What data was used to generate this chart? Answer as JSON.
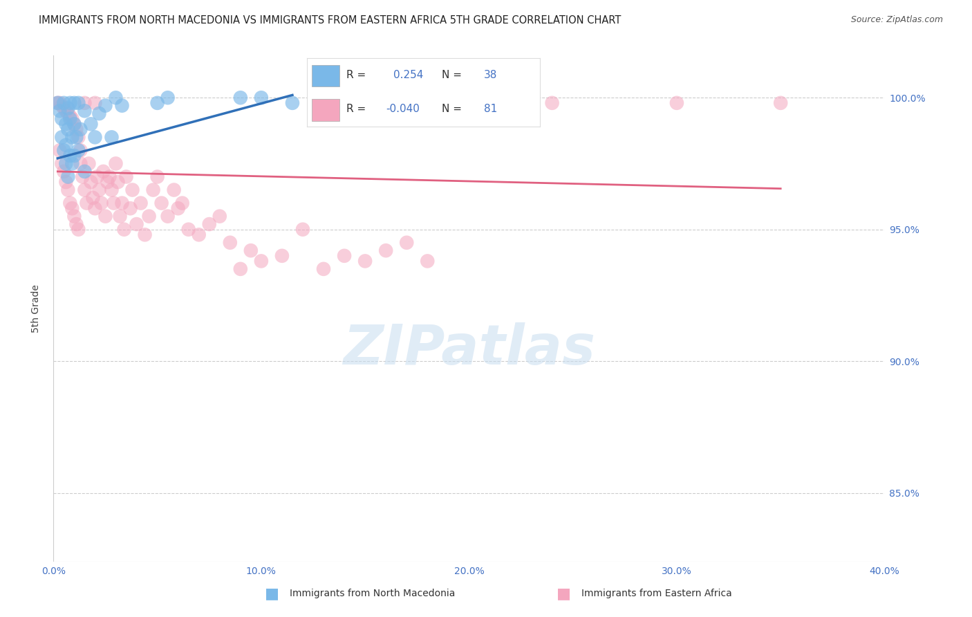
{
  "title": "IMMIGRANTS FROM NORTH MACEDONIA VS IMMIGRANTS FROM EASTERN AFRICA 5TH GRADE CORRELATION CHART",
  "source": "Source: ZipAtlas.com",
  "ylabel": "5th Grade",
  "y_ticks": [
    0.85,
    0.9,
    0.95,
    1.0
  ],
  "y_tick_labels": [
    "85.0%",
    "90.0%",
    "95.0%",
    "100.0%"
  ],
  "xlim": [
    0.0,
    0.4
  ],
  "ylim": [
    0.824,
    1.016
  ],
  "x_ticks": [
    0.0,
    0.1,
    0.2,
    0.3,
    0.4
  ],
  "x_tick_labels": [
    "0.0%",
    "10.0%",
    "20.0%",
    "30.0%",
    "40.0%"
  ],
  "legend_R1": "0.254",
  "legend_N1": "38",
  "legend_R2": "-0.040",
  "legend_N2": "81",
  "color_blue": "#7ab8e8",
  "color_pink": "#f4a6be",
  "color_line_blue": "#3070b8",
  "color_line_pink": "#e06080",
  "color_title": "#222222",
  "color_axis_labels": "#4472C4",
  "color_grid": "#cccccc",
  "watermark": "ZIPatlas",
  "north_macedonia_x": [
    0.002,
    0.003,
    0.004,
    0.004,
    0.005,
    0.005,
    0.006,
    0.006,
    0.006,
    0.007,
    0.007,
    0.007,
    0.008,
    0.008,
    0.008,
    0.009,
    0.009,
    0.01,
    0.01,
    0.01,
    0.011,
    0.012,
    0.012,
    0.013,
    0.015,
    0.015,
    0.018,
    0.02,
    0.022,
    0.025,
    0.028,
    0.03,
    0.033,
    0.05,
    0.055,
    0.09,
    0.1,
    0.115
  ],
  "north_macedonia_y": [
    0.998,
    0.995,
    0.992,
    0.985,
    0.98,
    0.998,
    0.99,
    0.982,
    0.975,
    0.996,
    0.988,
    0.97,
    0.998,
    0.992,
    0.978,
    0.985,
    0.975,
    0.998,
    0.99,
    0.978,
    0.985,
    0.998,
    0.98,
    0.988,
    0.995,
    0.972,
    0.99,
    0.985,
    0.994,
    0.997,
    0.985,
    1.0,
    0.997,
    0.998,
    1.0,
    1.0,
    1.0,
    0.998
  ],
  "eastern_africa_x": [
    0.002,
    0.003,
    0.003,
    0.004,
    0.004,
    0.005,
    0.005,
    0.006,
    0.006,
    0.007,
    0.007,
    0.008,
    0.008,
    0.009,
    0.009,
    0.01,
    0.01,
    0.011,
    0.011,
    0.012,
    0.012,
    0.013,
    0.013,
    0.014,
    0.015,
    0.015,
    0.016,
    0.017,
    0.018,
    0.019,
    0.02,
    0.02,
    0.021,
    0.022,
    0.023,
    0.024,
    0.025,
    0.026,
    0.027,
    0.028,
    0.029,
    0.03,
    0.031,
    0.032,
    0.033,
    0.034,
    0.035,
    0.037,
    0.038,
    0.04,
    0.042,
    0.044,
    0.046,
    0.048,
    0.05,
    0.052,
    0.055,
    0.058,
    0.06,
    0.062,
    0.065,
    0.07,
    0.075,
    0.08,
    0.085,
    0.09,
    0.095,
    0.1,
    0.11,
    0.12,
    0.13,
    0.14,
    0.15,
    0.16,
    0.17,
    0.18,
    0.2,
    0.22,
    0.24,
    0.3,
    0.35
  ],
  "eastern_africa_y": [
    0.998,
    0.998,
    0.98,
    0.997,
    0.975,
    0.996,
    0.972,
    0.995,
    0.968,
    0.994,
    0.965,
    0.993,
    0.96,
    0.992,
    0.958,
    0.99,
    0.955,
    0.988,
    0.952,
    0.985,
    0.95,
    0.98,
    0.975,
    0.97,
    0.998,
    0.965,
    0.96,
    0.975,
    0.968,
    0.962,
    0.998,
    0.958,
    0.97,
    0.965,
    0.96,
    0.972,
    0.955,
    0.968,
    0.97,
    0.965,
    0.96,
    0.975,
    0.968,
    0.955,
    0.96,
    0.95,
    0.97,
    0.958,
    0.965,
    0.952,
    0.96,
    0.948,
    0.955,
    0.965,
    0.97,
    0.96,
    0.955,
    0.965,
    0.958,
    0.96,
    0.95,
    0.948,
    0.952,
    0.955,
    0.945,
    0.935,
    0.942,
    0.938,
    0.94,
    0.95,
    0.935,
    0.94,
    0.938,
    0.942,
    0.945,
    0.938,
    0.998,
    0.998,
    0.998,
    0.998,
    0.998
  ],
  "pink_line_x": [
    0.002,
    0.35
  ],
  "pink_line_y": [
    0.972,
    0.9655
  ],
  "blue_line_x": [
    0.002,
    0.115
  ],
  "blue_line_y": [
    0.977,
    1.001
  ]
}
